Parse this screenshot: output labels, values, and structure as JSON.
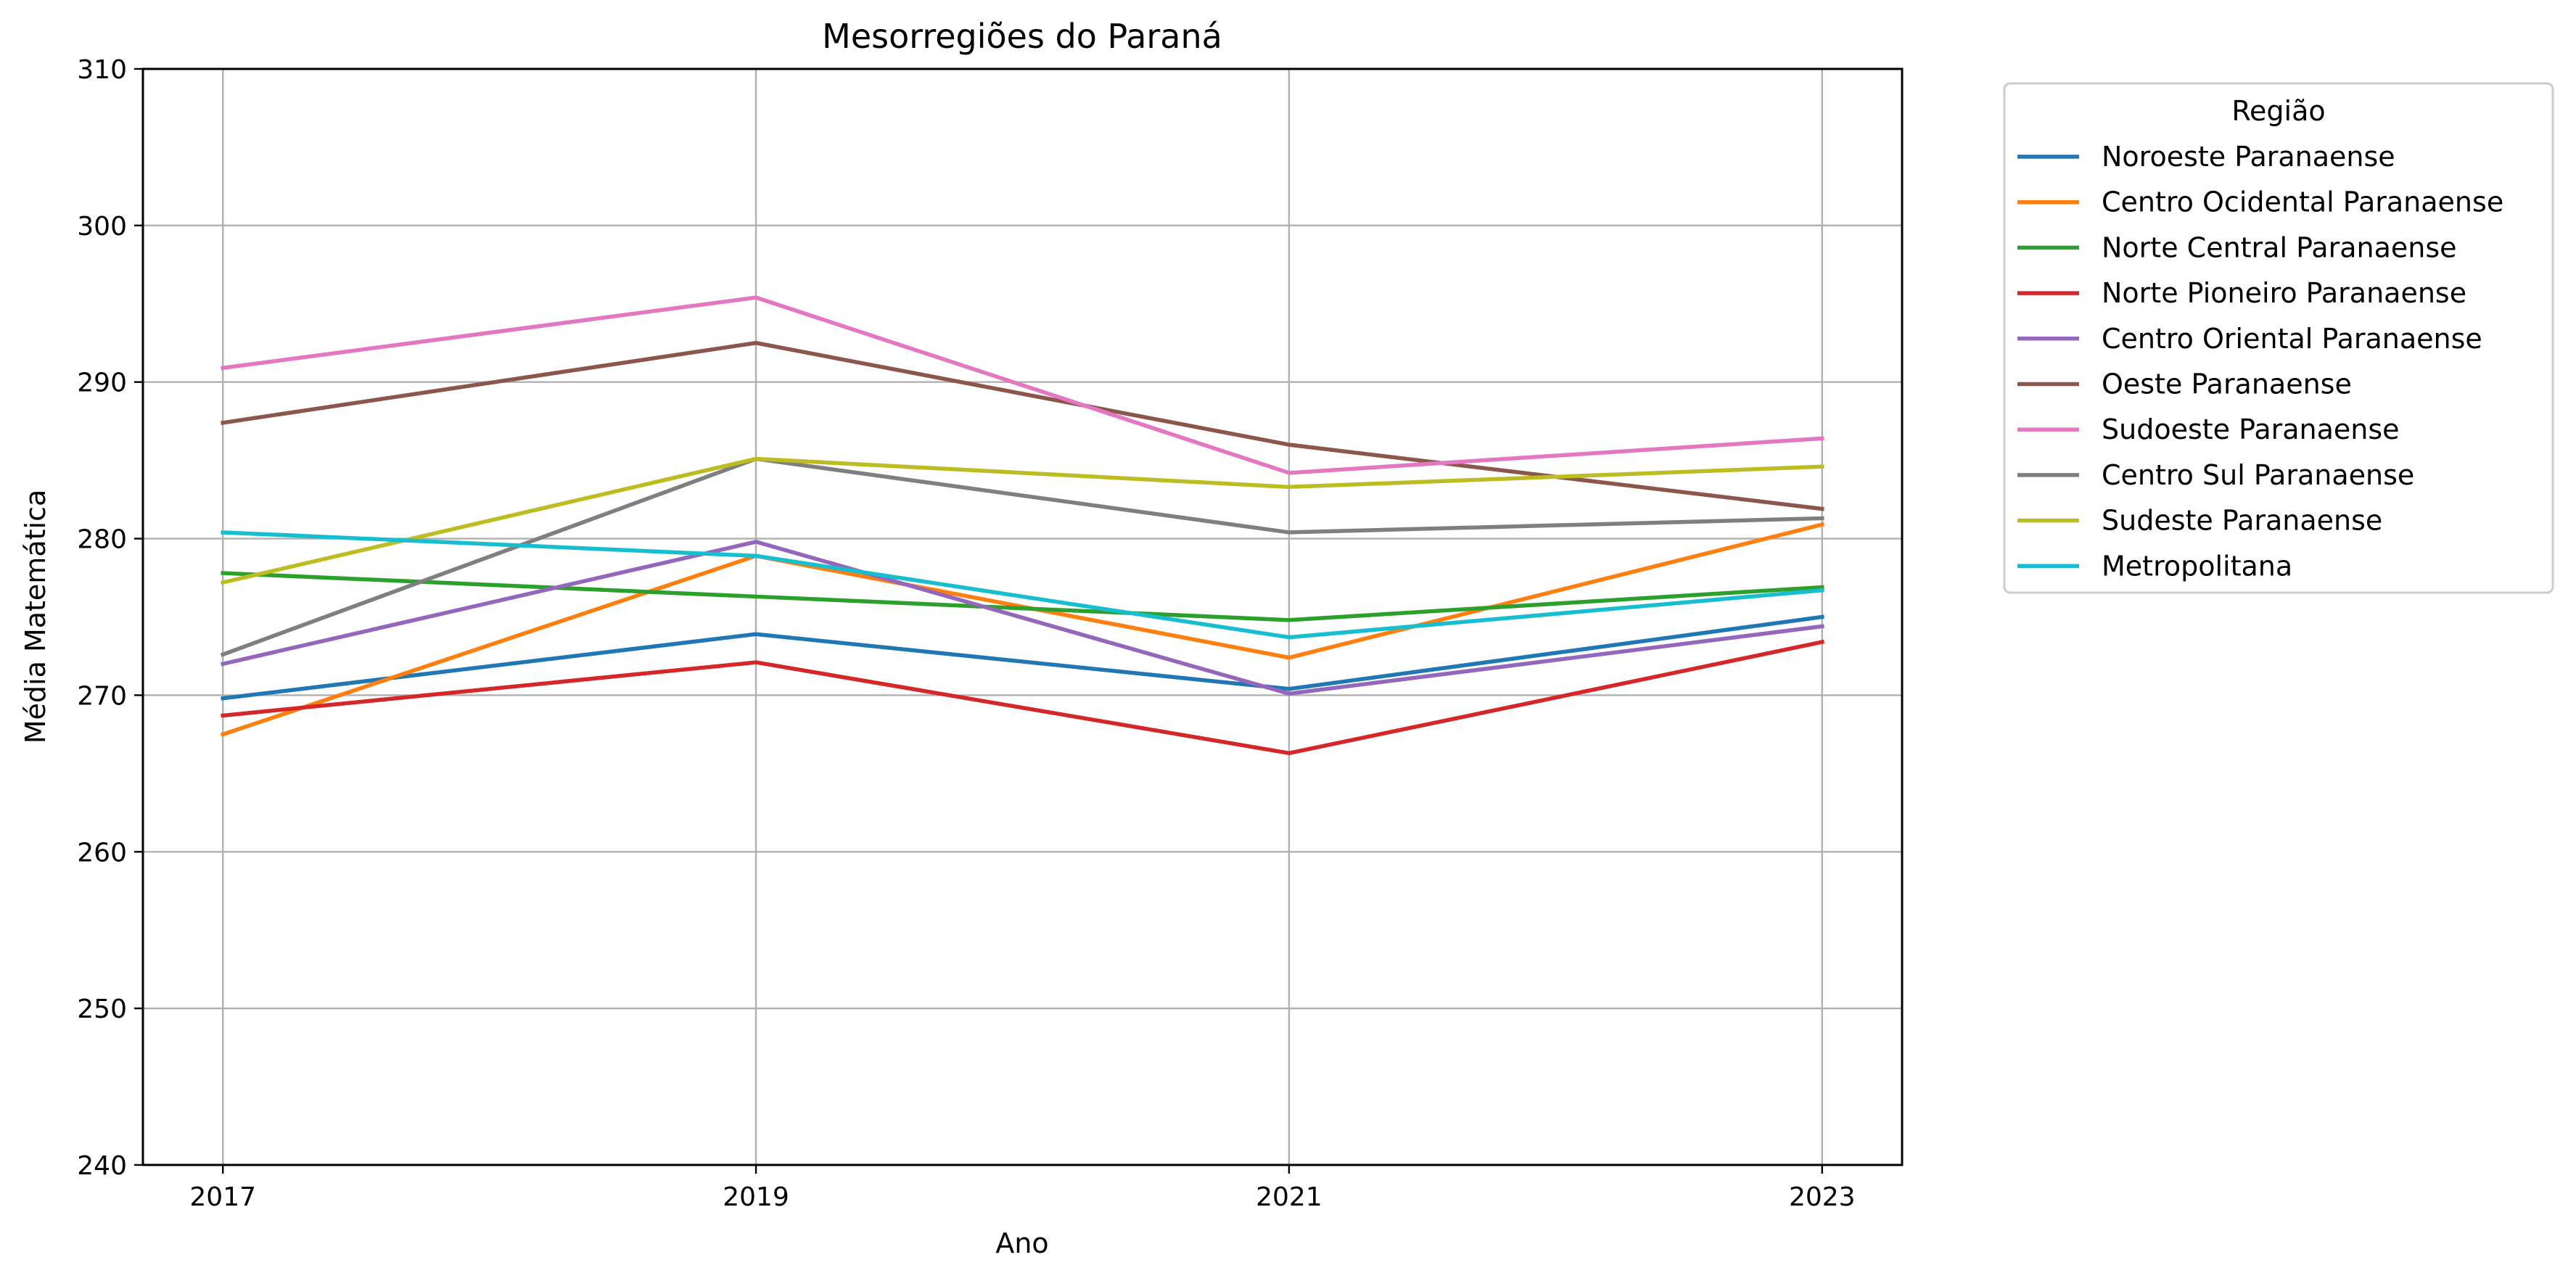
{
  "chart_data": {
    "type": "line",
    "title": "Mesorregiões do Paraná",
    "xlabel": "Ano",
    "ylabel": "Média Matemática",
    "x": [
      2017,
      2019,
      2021,
      2023
    ],
    "xticks": [
      "2017",
      "2019",
      "2021",
      "2023"
    ],
    "xlim": [
      2016.7,
      2023.3
    ],
    "ylim": [
      240,
      310
    ],
    "yticks": [
      "240",
      "250",
      "260",
      "270",
      "280",
      "290",
      "300",
      "310"
    ],
    "grid": true,
    "legend": {
      "title": "Região",
      "placement": "outside-top-right"
    },
    "series": [
      {
        "name": "Noroeste Paranaense",
        "color": "#1f77b4",
        "values": [
          269.8,
          273.9,
          270.4,
          275.0
        ]
      },
      {
        "name": "Centro Ocidental Paranaense",
        "color": "#ff7f0e",
        "values": [
          267.5,
          278.9,
          272.4,
          280.9
        ]
      },
      {
        "name": "Norte Central Paranaense",
        "color": "#2ca02c",
        "values": [
          277.8,
          276.3,
          274.8,
          276.9
        ]
      },
      {
        "name": "Norte Pioneiro Paranaense",
        "color": "#d62728",
        "values": [
          268.7,
          272.1,
          266.3,
          273.4
        ]
      },
      {
        "name": "Centro Oriental Paranaense",
        "color": "#9467bd",
        "values": [
          272.0,
          279.8,
          270.1,
          274.4
        ]
      },
      {
        "name": "Oeste Paranaense",
        "color": "#8c564b",
        "values": [
          287.4,
          292.5,
          286.0,
          281.9
        ]
      },
      {
        "name": "Sudoeste Paranaense",
        "color": "#e377c2",
        "values": [
          290.9,
          295.4,
          284.2,
          286.4
        ]
      },
      {
        "name": "Centro Sul Paranaense",
        "color": "#7f7f7f",
        "values": [
          272.6,
          285.1,
          280.4,
          281.3
        ]
      },
      {
        "name": "Sudeste Paranaense",
        "color": "#bcbd22",
        "values": [
          277.2,
          285.1,
          283.3,
          284.6
        ]
      },
      {
        "name": "Metropolitana",
        "color": "#17becf",
        "values": [
          280.4,
          278.9,
          273.7,
          276.7
        ]
      }
    ]
  }
}
